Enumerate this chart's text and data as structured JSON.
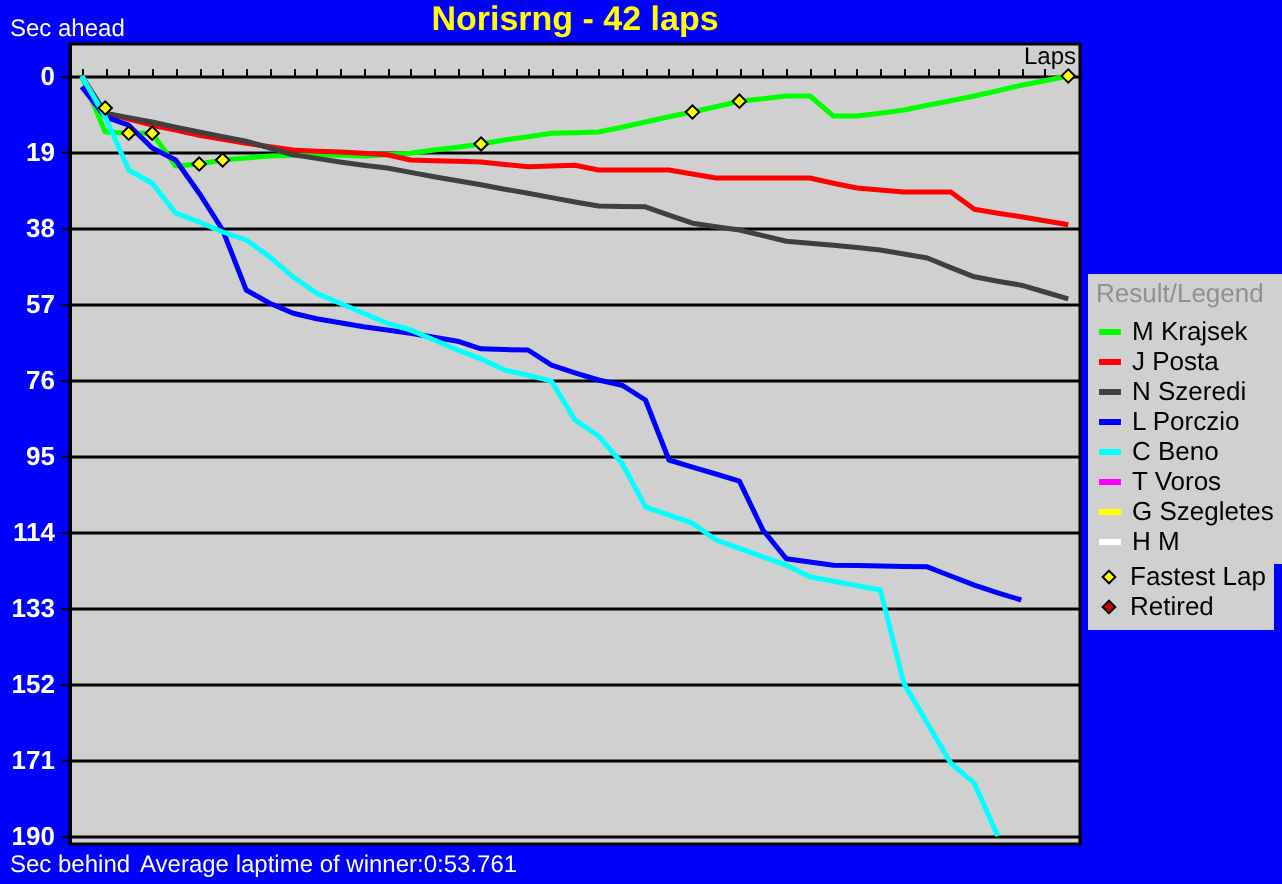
{
  "chart_data": {
    "type": "line",
    "title": "Norisrng - 42 laps",
    "xlabel": "Laps",
    "ylabel": "Sec ahead",
    "legend_title": "Result/Legend",
    "annotations": [
      "Sec behind",
      "Average laptime of winner:0:53.761"
    ],
    "categories": [
      null,
      null,
      null,
      null,
      null,
      null,
      null,
      null,
      null,
      null,
      null,
      null,
      null,
      null,
      null,
      null,
      null,
      null,
      null,
      null,
      null,
      null,
      null,
      null,
      null,
      null,
      null,
      null,
      null,
      null,
      null,
      null,
      null,
      null,
      null,
      null,
      null,
      null,
      null,
      null,
      null,
      null,
      null
    ],
    "ylim": [
      192,
      -8
    ],
    "yticks": [
      0,
      19,
      38,
      57,
      76,
      95,
      114,
      133,
      152,
      171,
      190
    ],
    "grid": "y",
    "legend": "right",
    "tick_labels": "y",
    "marker": "none",
    "line_style": "solid",
    "series": [
      {
        "name": "M Krajsek",
        "color": "#00ff00",
        "values": [
          0,
          14,
          14.3,
          14.3,
          22.5,
          22,
          21,
          20.5,
          20,
          19.8,
          19.7,
          19.8,
          20,
          19.7,
          19.3,
          18.5,
          17.8,
          17,
          16,
          15.2,
          14.3,
          14.2,
          14,
          12.8,
          11.5,
          10.2,
          9,
          7.7,
          6.3,
          5.7,
          5,
          5,
          10,
          10,
          9.3,
          8.5,
          7.3,
          6.2,
          5,
          3.7,
          2.3,
          1.2,
          0
        ]
      },
      {
        "name": "J Posta",
        "color": "#ff0000",
        "values": [
          0,
          9.3,
          10.8,
          12.3,
          13.5,
          14.8,
          15.8,
          16.8,
          17.7,
          18.5,
          18.8,
          19,
          19.3,
          19.7,
          21,
          21.2,
          21.3,
          21.5,
          22.1,
          22.7,
          22.5,
          22.3,
          23.5,
          23.5,
          23.5,
          23.5,
          24.5,
          25.5,
          25.5,
          25.5,
          25.5,
          25.5,
          26.8,
          28,
          28.5,
          29,
          29,
          29,
          33.3,
          34.3,
          35.2,
          36.2,
          37.2
        ]
      },
      {
        "name": "N Szeredi",
        "color": "#404040",
        "values": [
          0,
          9.3,
          10.4,
          11.5,
          12.8,
          14,
          15.2,
          16.3,
          18,
          19.7,
          20.6,
          21.5,
          22.3,
          23,
          24.1,
          25.2,
          26.2,
          27.2,
          28.3,
          29.3,
          30.4,
          31.5,
          32.5,
          32.6,
          32.7,
          34.8,
          36.8,
          37.7,
          38.5,
          39.9,
          41.3,
          41.8,
          42.3,
          42.9,
          43.5,
          44.5,
          45.5,
          47.9,
          50.2,
          51.3,
          52.3,
          54,
          55.7
        ]
      },
      {
        "name": "L Porczio",
        "color": "#0000ff",
        "values": [
          2.7,
          10.2,
          12.3,
          18,
          21,
          29.3,
          38.5,
          53.5,
          56.8,
          59.3,
          60.7,
          61.7,
          62.7,
          63.5,
          64.3,
          65.3,
          66.3,
          68.2,
          68.4,
          68.5,
          72.3,
          74.2,
          76,
          77.3,
          81,
          96,
          97.8,
          99.5,
          101.3,
          113.5,
          120.7,
          121.5,
          122.3,
          122.4,
          122.5,
          122.6,
          122.7,
          125,
          127.3,
          129.2,
          131,
          null,
          null
        ]
      },
      {
        "name": "C Beno",
        "color": "#00ffff",
        "values": [
          0,
          10.2,
          23.5,
          26.8,
          34.3,
          36.5,
          39,
          41,
          45.2,
          50.2,
          54.3,
          56.8,
          59.3,
          61.8,
          63.5,
          66,
          68.5,
          70.7,
          73.5,
          74.8,
          76.3,
          86,
          90,
          96.8,
          107.7,
          109.8,
          111.8,
          116,
          118.1,
          120.2,
          122.3,
          125.2,
          126.3,
          127.4,
          128.5,
          151.8,
          161.8,
          171.8,
          176.8,
          190,
          null,
          null,
          null
        ]
      },
      {
        "name": "T Voros",
        "color": "#ff00ff",
        "values": [
          null,
          null,
          null,
          null,
          null,
          null,
          null,
          null,
          null,
          null,
          null,
          null,
          null,
          null,
          null,
          null,
          null,
          null,
          null,
          null,
          null,
          null,
          null,
          null,
          null,
          null,
          null,
          null,
          null,
          null,
          null,
          null,
          null,
          null,
          null,
          null,
          null,
          null,
          null,
          null,
          null,
          null,
          null
        ]
      },
      {
        "name": "G Szegletes",
        "color": "#ffff00",
        "values": [
          null,
          null,
          null,
          null,
          null,
          null,
          null,
          null,
          null,
          null,
          null,
          null,
          null,
          null,
          null,
          null,
          null,
          null,
          null,
          null,
          null,
          null,
          null,
          null,
          null,
          null,
          null,
          null,
          null,
          null,
          null,
          null,
          null,
          null,
          null,
          null,
          null,
          null,
          null,
          null,
          null,
          null,
          null
        ]
      },
      {
        "name": "H M",
        "color": "#ffffff",
        "values": [
          null,
          null,
          null,
          null,
          null,
          null,
          null,
          null,
          null,
          null,
          null,
          null,
          null,
          null,
          null,
          null,
          null,
          null,
          null,
          null,
          null,
          null,
          null,
          null,
          null,
          null,
          null,
          null,
          null,
          null,
          null,
          null,
          null,
          null,
          null,
          null,
          null,
          null,
          null,
          null,
          null,
          null,
          null
        ]
      },
      {
        "name": "Fastest Lap",
        "type": "scatter",
        "marker": "diamond",
        "color": "#ffff00",
        "values": [
          null,
          8,
          14.3,
          14.3,
          null,
          22,
          21,
          null,
          null,
          null,
          null,
          null,
          null,
          null,
          null,
          null,
          null,
          17,
          null,
          null,
          null,
          null,
          null,
          null,
          null,
          null,
          9,
          null,
          6.3,
          null,
          null,
          null,
          null,
          null,
          null,
          null,
          null,
          null,
          null,
          null,
          null,
          null,
          0
        ]
      },
      {
        "name": "Retired",
        "type": "scatter",
        "marker": "diamond",
        "color": "#d00000",
        "values": [
          null,
          null,
          null,
          null,
          null,
          null,
          null,
          null,
          null,
          null,
          null,
          null,
          null,
          null,
          null,
          null,
          null,
          null,
          null,
          null,
          null,
          null,
          null,
          null,
          null,
          null,
          null,
          null,
          null,
          null,
          null,
          null,
          null,
          null,
          null,
          null,
          null,
          null,
          null,
          null,
          null,
          null,
          null
        ]
      }
    ]
  }
}
